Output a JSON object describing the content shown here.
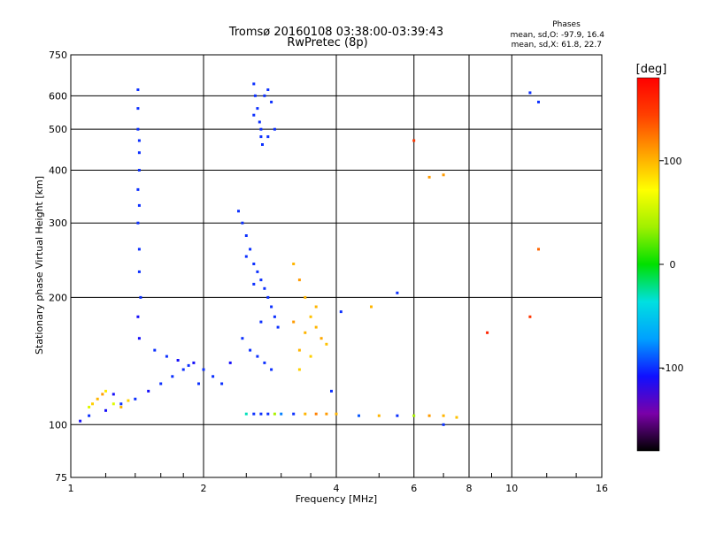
{
  "chart_data": {
    "type": "scatter",
    "title": "Tromsø 20160108 03:38:00-03:39:43",
    "subtitle": "RwPretec (8p)",
    "xlabel": "Frequency [MHz]",
    "ylabel": "Stationary phase Virtual Height [km]",
    "x_scale": "log",
    "y_scale": "log",
    "xlim": [
      1,
      16
    ],
    "ylim": [
      75,
      750
    ],
    "x_ticks": [
      1,
      2,
      4,
      6,
      8,
      10,
      16
    ],
    "y_ticks": [
      75,
      100,
      200,
      300,
      400,
      500,
      600,
      750
    ],
    "grid": true,
    "phases_box": {
      "title": "Phases",
      "line_o": "mean, sd,O: -97.9, 16.4",
      "line_x": "mean, sd,X:  61.8, 22.7"
    },
    "colorbar": {
      "label": "[deg]",
      "range": [
        -180,
        180
      ],
      "ticks": [
        100,
        0,
        -100
      ],
      "colors": [
        "#000000",
        "#7a00a8",
        "#1010ff",
        "#00a0ff",
        "#00e0e0",
        "#00e000",
        "#a0f000",
        "#ffff00",
        "#ffa000",
        "#ff4000",
        "#ff0000"
      ]
    },
    "series": [
      {
        "x": [
          1.42,
          1.42,
          1.42,
          1.43,
          1.43,
          1.43,
          1.42,
          1.43,
          1.42,
          1.43,
          1.43,
          1.44,
          1.42,
          1.43
        ],
        "y": [
          620,
          560,
          500,
          470,
          440,
          400,
          360,
          330,
          300,
          260,
          230,
          200,
          180,
          160
        ],
        "phase": [
          -100,
          -100,
          -100,
          -100,
          -100,
          -100,
          -100,
          -100,
          -100,
          -100,
          -100,
          -100,
          -110,
          -110
        ]
      },
      {
        "x": [
          2.6,
          2.62,
          2.65,
          2.68,
          2.7,
          2.72,
          2.75,
          2.8,
          2.85,
          2.9,
          2.6,
          2.7,
          2.8
        ],
        "y": [
          640,
          600,
          560,
          520,
          480,
          460,
          600,
          620,
          580,
          500,
          540,
          500,
          480
        ],
        "phase": [
          -100,
          -100,
          -100,
          -100,
          -100,
          -100,
          -100,
          -100,
          -100,
          -100,
          -100,
          -100,
          -100
        ]
      },
      {
        "x": [
          2.4,
          2.45,
          2.5,
          2.55,
          2.6,
          2.65,
          2.7,
          2.75,
          2.8,
          2.85,
          2.9,
          2.95,
          2.45,
          2.55,
          2.65,
          2.75,
          2.85,
          2.5,
          2.6,
          2.7
        ],
        "y": [
          320,
          300,
          280,
          260,
          240,
          230,
          220,
          210,
          200,
          190,
          180,
          170,
          160,
          150,
          145,
          140,
          135,
          250,
          215,
          175
        ],
        "phase": [
          -100,
          -100,
          -100,
          -100,
          -100,
          -100,
          -100,
          -100,
          -100,
          -100,
          -100,
          -100,
          -100,
          -100,
          -100,
          -100,
          -100,
          -100,
          -100,
          -100
        ]
      },
      {
        "x": [
          3.2,
          3.3,
          3.4,
          3.5,
          3.6,
          3.7,
          3.3,
          3.5,
          3.4,
          3.6,
          3.2,
          3.8,
          3.3
        ],
        "y": [
          240,
          220,
          200,
          180,
          170,
          160,
          150,
          145,
          165,
          190,
          175,
          155,
          135
        ],
        "phase": [
          100,
          110,
          100,
          95,
          100,
          105,
          100,
          90,
          100,
          100,
          110,
          95,
          90
        ]
      },
      {
        "x": [
          1.05,
          1.1,
          1.2,
          1.3,
          1.4,
          1.5,
          1.6,
          1.7,
          1.8,
          1.9,
          2.0,
          2.1,
          2.2,
          2.3,
          1.25,
          1.55,
          1.65,
          1.75,
          1.85,
          1.95
        ],
        "y": [
          102,
          105,
          108,
          112,
          115,
          120,
          125,
          130,
          135,
          140,
          135,
          130,
          125,
          140,
          118,
          150,
          145,
          142,
          138,
          125
        ],
        "phase": [
          -110,
          -100,
          -110,
          -100,
          -100,
          -110,
          -100,
          -100,
          -100,
          -110,
          -100,
          -100,
          -100,
          -110,
          -110,
          -100,
          -100,
          -110,
          -100,
          -100
        ]
      },
      {
        "x": [
          2.5,
          2.6,
          2.7,
          2.8,
          2.9,
          3.0,
          3.2,
          3.4,
          3.6,
          3.8,
          4.0,
          4.5,
          5.0,
          5.5,
          6.0,
          6.5,
          7.0,
          7.5
        ],
        "y": [
          106,
          106,
          106,
          106,
          106,
          106,
          106,
          106,
          106,
          106,
          106,
          105,
          105,
          105,
          105,
          105,
          105,
          104
        ],
        "phase": [
          -30,
          -100,
          -100,
          -100,
          40,
          -80,
          -100,
          100,
          120,
          110,
          100,
          -90,
          100,
          -100,
          40,
          110,
          100,
          95
        ]
      },
      {
        "x": [
          1.1,
          1.12,
          1.15,
          1.18,
          1.2,
          1.25,
          1.3,
          1.35
        ],
        "y": [
          110,
          112,
          115,
          118,
          120,
          112,
          110,
          114
        ],
        "phase": [
          60,
          90,
          100,
          110,
          80,
          60,
          100,
          90
        ]
      },
      {
        "x": [
          4.8,
          5.5,
          4.1,
          3.9,
          6.5,
          7.0,
          11.0,
          11.5,
          11.0,
          11.5,
          8.8,
          6.0,
          7.0
        ],
        "y": [
          190,
          205,
          185,
          120,
          385,
          390,
          610,
          580,
          180,
          260,
          165,
          470,
          100
        ],
        "phase": [
          100,
          -100,
          -100,
          -100,
          110,
          110,
          -100,
          -100,
          150,
          130,
          160,
          150,
          -100
        ]
      }
    ]
  }
}
